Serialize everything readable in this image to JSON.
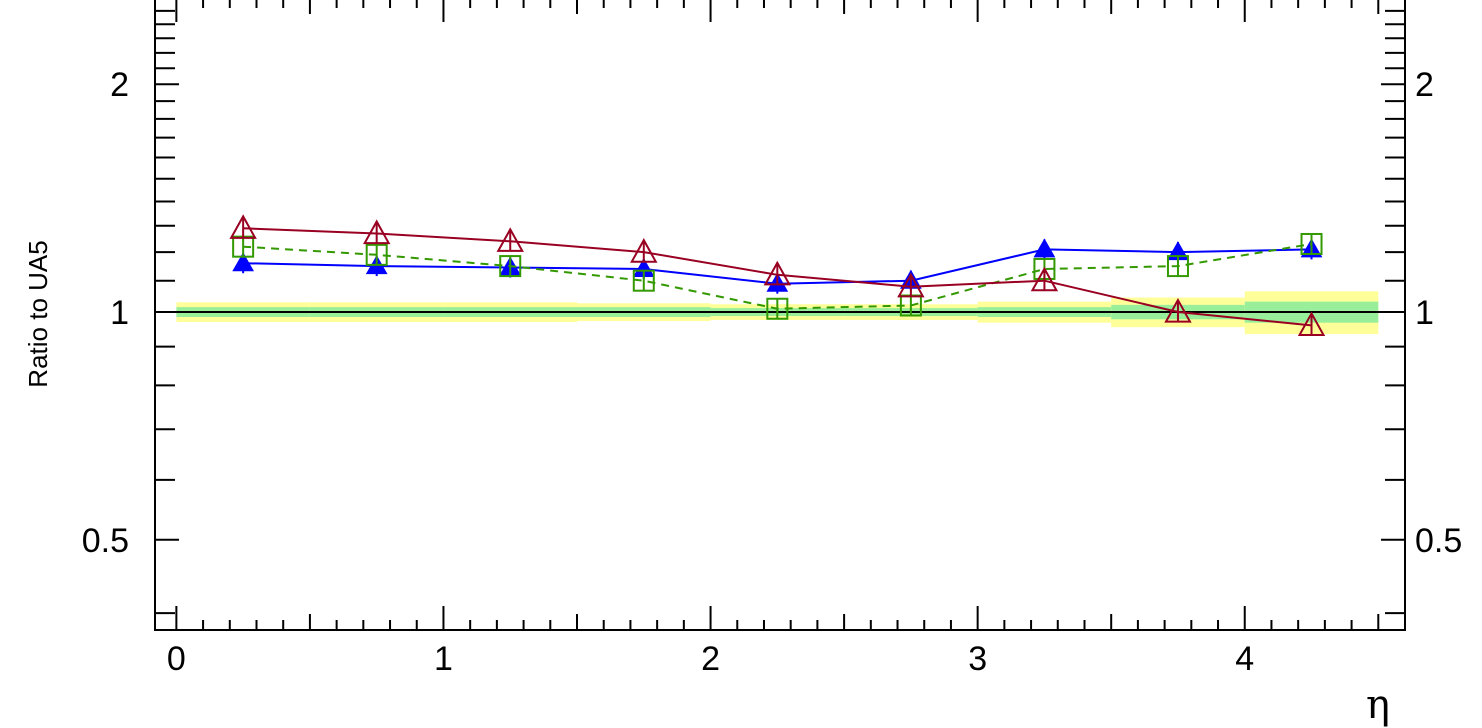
{
  "chart_data": {
    "type": "line",
    "title": "",
    "xlabel": "η",
    "ylabel": "Ratio to UA5",
    "xlim": [
      -0.08,
      4.6
    ],
    "ylim": [
      0.38,
      2.6
    ],
    "log_y": true,
    "x_ticks": [
      0,
      1,
      2,
      3,
      4
    ],
    "x_tick_labels": [
      "0",
      "1",
      "2",
      "3",
      "4"
    ],
    "y_ticks": [
      0.5,
      1,
      2
    ],
    "y_tick_labels": [
      "0.5",
      "1",
      "2"
    ],
    "reference_line": 1,
    "grid": false,
    "x": [
      0.25,
      0.75,
      1.25,
      1.75,
      2.25,
      2.75,
      3.25,
      3.75,
      4.25
    ],
    "series": [
      {
        "marker": "filled-triangle",
        "line": "solid",
        "color": "#0000ff",
        "values": [
          1.16,
          1.15,
          1.145,
          1.14,
          1.09,
          1.1,
          1.21,
          1.2,
          1.21
        ]
      },
      {
        "marker": "open-square",
        "line": "dashed",
        "color": "#339900",
        "values": [
          1.22,
          1.19,
          1.15,
          1.1,
          1.01,
          1.02,
          1.14,
          1.15,
          1.23
        ]
      },
      {
        "marker": "open-triangle",
        "line": "solid",
        "color": "#990022",
        "values": [
          1.29,
          1.27,
          1.24,
          1.2,
          1.12,
          1.08,
          1.1,
          1.0,
          0.96
        ]
      }
    ],
    "bands": [
      {
        "x0": 0,
        "x1": 0.5,
        "inner": [
          0.985,
          1.015
        ],
        "outer": [
          0.97,
          1.03
        ]
      },
      {
        "x0": 0.5,
        "x1": 1.0,
        "inner": [
          0.985,
          1.015
        ],
        "outer": [
          0.97,
          1.03
        ]
      },
      {
        "x0": 1.0,
        "x1": 1.5,
        "inner": [
          0.985,
          1.015
        ],
        "outer": [
          0.97,
          1.03
        ]
      },
      {
        "x0": 1.5,
        "x1": 2.0,
        "inner": [
          0.985,
          1.015
        ],
        "outer": [
          0.973,
          1.027
        ]
      },
      {
        "x0": 2.0,
        "x1": 2.5,
        "inner": [
          0.988,
          1.012
        ],
        "outer": [
          0.976,
          1.024
        ]
      },
      {
        "x0": 2.5,
        "x1": 3.0,
        "inner": [
          0.988,
          1.012
        ],
        "outer": [
          0.976,
          1.024
        ]
      },
      {
        "x0": 3.0,
        "x1": 3.5,
        "inner": [
          0.985,
          1.015
        ],
        "outer": [
          0.968,
          1.032
        ]
      },
      {
        "x0": 3.5,
        "x1": 4.0,
        "inner": [
          0.978,
          1.022
        ],
        "outer": [
          0.955,
          1.045
        ]
      },
      {
        "x0": 4.0,
        "x1": 4.5,
        "inner": [
          0.968,
          1.032
        ],
        "outer": [
          0.935,
          1.065
        ]
      }
    ],
    "band_colors": {
      "inner": "#99ee99",
      "outer": "#ffff99"
    }
  }
}
